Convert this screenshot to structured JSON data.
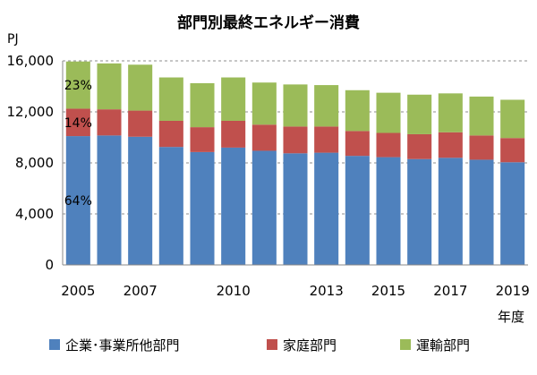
{
  "chart_data": {
    "type": "bar",
    "stacked": true,
    "title": "部門別最終エネルギー消費",
    "ylabel": "PJ",
    "xlabel": "年度",
    "ylim": [
      0,
      16000
    ],
    "yticks": [
      "0",
      "4,000",
      "8,000",
      "12,000",
      "16,000"
    ],
    "ytick_values": [
      0,
      4000,
      8000,
      12000,
      16000
    ],
    "categories": [
      "2005",
      "2006",
      "2007",
      "2008",
      "2009",
      "2010",
      "2011",
      "2012",
      "2013",
      "2014",
      "2015",
      "2016",
      "2017",
      "2018",
      "2019"
    ],
    "xtick_labels": [
      "2005",
      "",
      "2007",
      "",
      "",
      "2010",
      "",
      "",
      "2013",
      "",
      "2015",
      "",
      "2017",
      "",
      "2019"
    ],
    "series": [
      {
        "name": "企業･事業所他部門",
        "color": "#4F81BD",
        "values": [
          10100,
          10150,
          10050,
          9250,
          8850,
          9200,
          8950,
          8750,
          8800,
          8550,
          8450,
          8300,
          8400,
          8250,
          8050
        ]
      },
      {
        "name": "家庭部門",
        "color": "#C0504D",
        "values": [
          2150,
          2050,
          2050,
          2050,
          1950,
          2100,
          2050,
          2100,
          2050,
          1950,
          1900,
          1950,
          2000,
          1900,
          1900
        ]
      },
      {
        "name": "運輸部門",
        "color": "#9BBB59",
        "values": [
          3700,
          3600,
          3600,
          3400,
          3450,
          3400,
          3300,
          3300,
          3250,
          3200,
          3150,
          3100,
          3050,
          3050,
          3000
        ]
      }
    ],
    "shares": [
      {
        "series": 2,
        "label": "23%"
      },
      {
        "series": 1,
        "label": "14%"
      },
      {
        "series": 0,
        "label": "64%"
      }
    ],
    "grid": "dashed horizontal",
    "legend_position": "bottom"
  }
}
